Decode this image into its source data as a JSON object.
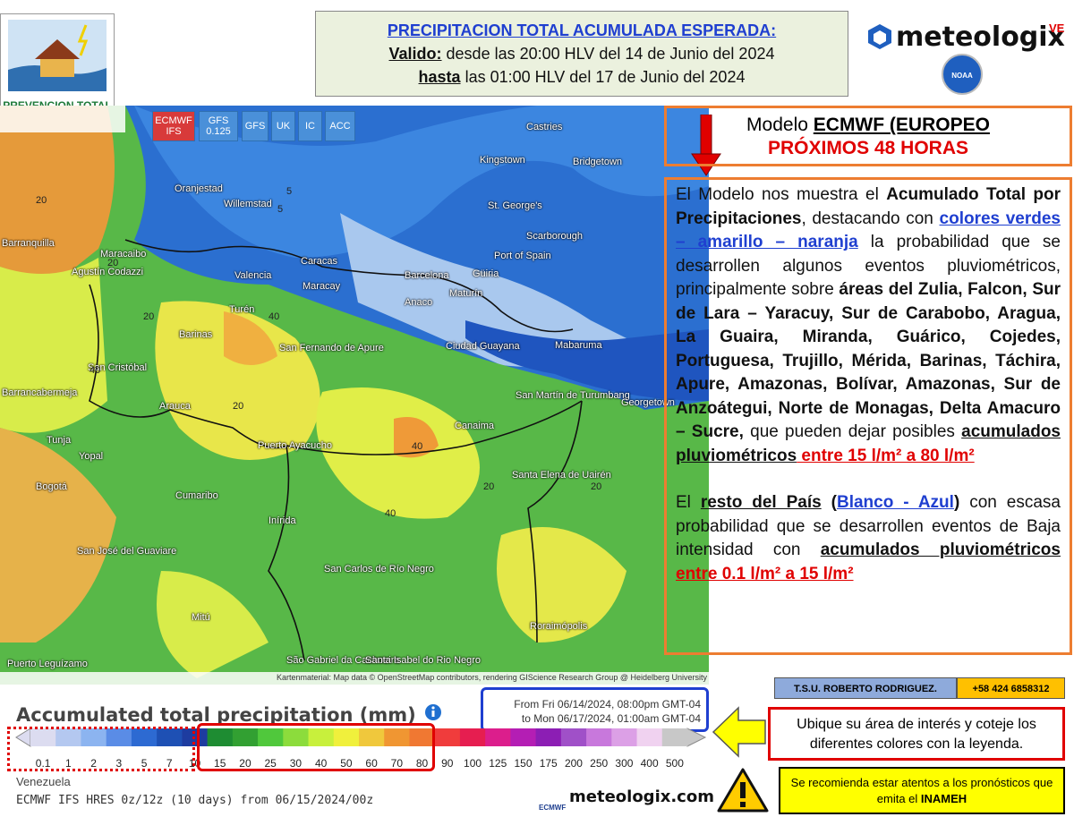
{
  "logo": {
    "text": "PREVENCION TOTAL"
  },
  "header": {
    "lines": [
      [
        {
          "text": "PRECIPITACION TOTAL ACUMULADA ESPERADA:",
          "style": "blue"
        }
      ],
      [
        {
          "text": "Valido:",
          "style": "underline"
        },
        {
          "text": " desde las 20:00 HLV del  14 de Junio  del 2024",
          "style": "normal"
        }
      ],
      [
        {
          "text": "hasta",
          "style": "underline"
        },
        {
          "text": " las 01:00 HLV del  17 de Junio del 2024",
          "style": "normal"
        }
      ]
    ]
  },
  "brand": {
    "name": "meteologix",
    "suffix": "VE",
    "agency": "NOAA"
  },
  "map": {
    "buttons": [
      "ECMWF IFS",
      "GFS 0.125",
      "GFS",
      "UK",
      "IC",
      "ACC"
    ],
    "places": [
      "Oranjestad",
      "Willemstad",
      "Castries",
      "Kingstown",
      "Bridgetown",
      "St. George's",
      "Scarborough",
      "Port of Spain",
      "Barranquilla",
      "Maracaibo",
      "Agustín Codazzi",
      "Valencia",
      "Caracas",
      "Maracay",
      "Barcelona",
      "Güiria",
      "Maturín",
      "Anaco",
      "Turén",
      "Barinas",
      "San Fernando de Apure",
      "San Cristóbal",
      "Barrancabermeja",
      "Arauca",
      "Ciudad Guayana",
      "Mabaruma",
      "San Martín de Turumbang",
      "Georgetown",
      "Canaima",
      "Puerto Ayacucho",
      "Tunja",
      "Yopal",
      "Bogotá",
      "Cumaribo",
      "Santa Elena de Uairén",
      "Inírida",
      "San José del Guaviare",
      "San Carlos de Río Negro",
      "Mitú",
      "Roraimópolis",
      "São Gabriel da Cachoeira",
      "Santa Isabel do Rio Negro",
      "Puerto Leguízamo"
    ],
    "contour_labels": [
      "20",
      "20",
      "20",
      "40",
      "40",
      "20",
      "40",
      "20",
      "5",
      "5",
      "20",
      "40"
    ],
    "attribution": "Kartenmaterial: Map data © OpenStreetMap contributors, rendering GIScience Research Group @ Heidelberg University"
  },
  "legend": {
    "title": "Accumulated total precipitation (mm)",
    "period": [
      "From Fri 06/14/2024, 08:00pm GMT-04",
      "to Mon 06/17/2024, 01:00am GMT-04"
    ],
    "labels": [
      "0.1",
      "1",
      "2",
      "3",
      "5",
      "7",
      "10",
      "15",
      "20",
      "25",
      "30",
      "40",
      "50",
      "60",
      "70",
      "80",
      "90",
      "100",
      "125",
      "150",
      "175",
      "200",
      "250",
      "300",
      "400",
      "500"
    ],
    "colors": [
      "#dcdcf0",
      "#b4c8f0",
      "#8cb4f0",
      "#5a8ce6",
      "#2d6ad2",
      "#1e50b4",
      "#1e3ca0",
      "#1e8c32",
      "#32a032",
      "#50c83c",
      "#8cdc3c",
      "#c8f03c",
      "#f0f03c",
      "#f0c83c",
      "#f09632",
      "#f07832",
      "#f03c3c",
      "#e61e50",
      "#dc1e8c",
      "#b41eb4",
      "#8c1eb4",
      "#a050c8",
      "#c878dc",
      "#dca0e6",
      "#f0d2f0",
      "#c8c8c8"
    ],
    "region": "Venezuela",
    "model": "ECMWF IFS HRES 0z/12z (10 days) from 06/15/2024/00z",
    "source": "ECMWF",
    "site": "meteologix.com"
  },
  "model_box": {
    "lines": [
      [
        {
          "text": "Modelo ",
          "style": "normal"
        },
        {
          "text": "ECMWF (EUROPEO",
          "style": "underline"
        }
      ],
      [
        {
          "text": "PRÓXIMOS 48  HORAS",
          "style": "red"
        }
      ]
    ]
  },
  "description": {
    "paragraphs": [
      [
        {
          "text": "El Modelo nos muestra el ",
          "style": "normal"
        },
        {
          "text": "Acumulado Total por Precipitaciones",
          "style": "bold"
        },
        {
          "text": ", destacando con ",
          "style": "normal"
        },
        {
          "text": "colores verdes – amarillo – naranja",
          "style": "blue"
        },
        {
          "text": " la probabilidad que se desarrollen algunos eventos pluviométricos, principalmente sobre ",
          "style": "normal"
        },
        {
          "text": "áreas del Zulia, Falcon, Sur de Lara – Yaracuy, Sur de Carabobo, Aragua, La Guaira, Miranda, Guárico, Cojedes, Portuguesa, Trujillo, Mérida, Barinas, Táchira, Apure, Amazonas, Bolívar, Amazonas, Sur de Anzoátegui, Norte de Monagas, Delta Amacuro – Sucre,",
          "style": "bold"
        },
        {
          "text": " que pueden dejar posibles ",
          "style": "normal"
        },
        {
          "text": "acumulados pluviométricos",
          "style": "underline"
        },
        {
          "text": " entre 15  l/m²  a 80 l/m²",
          "style": "red"
        }
      ],
      [
        {
          "text": "El ",
          "style": "normal"
        },
        {
          "text": "resto del País",
          "style": "underline"
        },
        {
          "text": " (",
          "style": "bold"
        },
        {
          "text": "Blanco - Azul",
          "style": "blue"
        },
        {
          "text": ")",
          "style": "bold"
        },
        {
          "text": " con escasa probabilidad que se desarrollen eventos de Baja intensidad con ",
          "style": "normal"
        },
        {
          "text": "acumulados pluviométricos",
          "style": "underline"
        },
        {
          "text": "  entre 0.1 l/m² a 15  l/m²",
          "style": "red"
        }
      ]
    ]
  },
  "credits": {
    "name": "T.S.U. ROBERTO RODRIGUEZ.",
    "phone": "+58 424 6858312"
  },
  "note": "Ubique su área de interés y coteje los diferentes colores con la leyenda.",
  "warning": [
    {
      "text": "Se recomienda estar atentos a los pronósticos que emita el ",
      "style": "normal"
    },
    {
      "text": "INAMEH",
      "style": "bold"
    }
  ]
}
